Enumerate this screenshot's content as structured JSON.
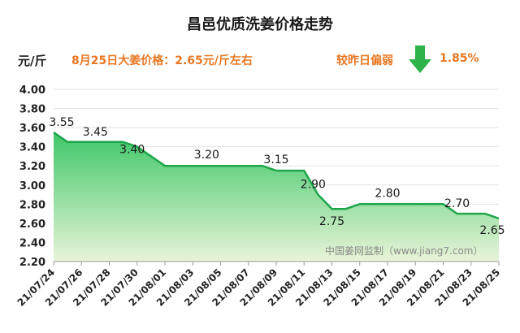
{
  "header": {
    "title": "昌邑优质洗姜价格走势",
    "unit": "元/斤",
    "price_note": "8月25日大姜价格：2.65元/斤左右",
    "compare_label": "较昨日偏弱",
    "change_pct": "1.85%",
    "trend_icon": "down-arrow-icon",
    "accent_color": "#e87722",
    "arrow_color": "#2db34a"
  },
  "watermark": "中国姜网监制（www.jiang7.com）",
  "chart_data": {
    "type": "area",
    "title": "昌邑优质洗姜价格走势",
    "ylabel": "元/斤",
    "ylim": [
      2.2,
      4.0
    ],
    "yticks": [
      "4.00",
      "3.80",
      "3.60",
      "3.40",
      "3.20",
      "3.00",
      "2.80",
      "2.60",
      "2.40",
      "2.20"
    ],
    "xticks": [
      "21/07/24",
      "21/07/26",
      "21/07/28",
      "21/07/30",
      "21/08/01",
      "21/08/03",
      "21/08/05",
      "21/08/07",
      "21/08/09",
      "21/08/11",
      "21/08/13",
      "21/08/15",
      "21/08/17",
      "21/08/19",
      "21/08/21",
      "21/08/23",
      "21/08/25"
    ],
    "x": [
      "21/07/24",
      "21/07/25",
      "21/07/26",
      "21/07/27",
      "21/07/28",
      "21/07/29",
      "21/07/30",
      "21/07/31",
      "21/08/01",
      "21/08/02",
      "21/08/03",
      "21/08/04",
      "21/08/05",
      "21/08/06",
      "21/08/07",
      "21/08/08",
      "21/08/09",
      "21/08/10",
      "21/08/11",
      "21/08/12",
      "21/08/13",
      "21/08/14",
      "21/08/15",
      "21/08/16",
      "21/08/17",
      "21/08/18",
      "21/08/19",
      "21/08/20",
      "21/08/21",
      "21/08/22",
      "21/08/23",
      "21/08/24",
      "21/08/25"
    ],
    "values": [
      3.55,
      3.45,
      3.45,
      3.45,
      3.45,
      3.45,
      3.4,
      3.3,
      3.2,
      3.2,
      3.2,
      3.2,
      3.2,
      3.2,
      3.2,
      3.2,
      3.15,
      3.15,
      3.15,
      2.9,
      2.75,
      2.75,
      2.8,
      2.8,
      2.8,
      2.8,
      2.8,
      2.8,
      2.8,
      2.7,
      2.7,
      2.7,
      2.65
    ],
    "data_labels": [
      {
        "x": "21/07/24",
        "text": "3.55"
      },
      {
        "x": "21/07/27",
        "text": "3.45"
      },
      {
        "x": "21/07/30",
        "text": "3.40"
      },
      {
        "x": "21/08/04",
        "text": "3.20"
      },
      {
        "x": "21/08/09",
        "text": "3.15"
      },
      {
        "x": "21/08/12",
        "text": "2.90"
      },
      {
        "x": "21/08/13",
        "text": "2.75"
      },
      {
        "x": "21/08/17",
        "text": "2.80"
      },
      {
        "x": "21/08/22",
        "text": "2.70"
      },
      {
        "x": "21/08/25",
        "text": "2.65"
      }
    ],
    "grid": true,
    "line_color": "#1fa64a",
    "fill_top_color": "#3ec768",
    "fill_bottom_color": "#e8f4d8"
  }
}
